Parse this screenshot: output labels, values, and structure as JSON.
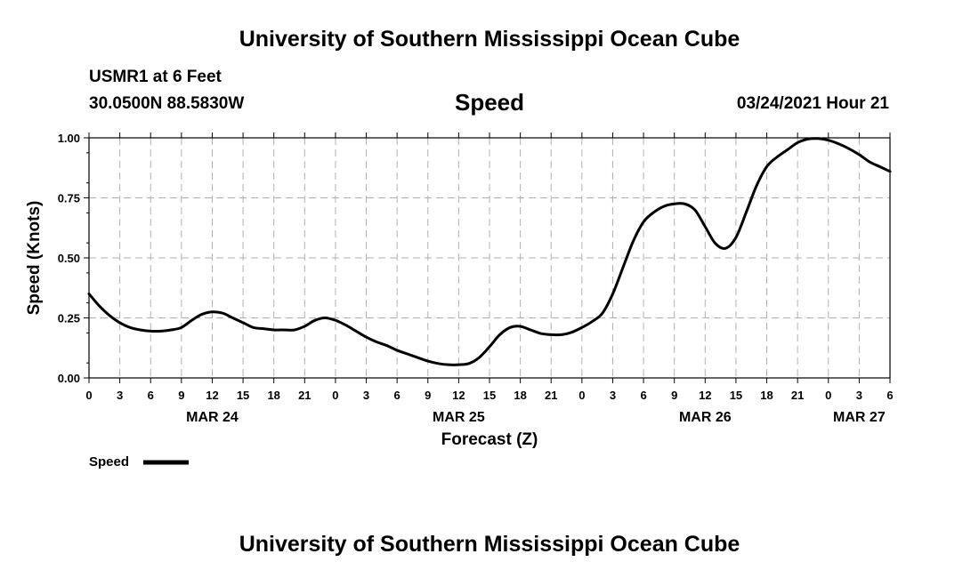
{
  "header": {
    "title": "University of Southern Mississippi Ocean Cube",
    "station": "USMR1 at 6 Feet",
    "coords": "30.0500N 88.5830W",
    "variable": "Speed",
    "datetime": "03/24/2021 Hour 21"
  },
  "footer": {
    "title": "University of Southern Mississippi Ocean Cube"
  },
  "chart_data": {
    "type": "line",
    "title": "Speed",
    "xlabel": "Forecast (Z)",
    "ylabel": "Speed (Knots)",
    "ylim": [
      0,
      1.0
    ],
    "xlim_hours": [
      0,
      78
    ],
    "grid": true,
    "y_ticks": [
      "0.00",
      "0.25",
      "0.50",
      "0.75",
      "1.00"
    ],
    "x_ticks": [
      "0",
      "3",
      "6",
      "9",
      "12",
      "15",
      "18",
      "21",
      "0",
      "3",
      "6",
      "9",
      "12",
      "15",
      "18",
      "21",
      "0",
      "3",
      "6",
      "9",
      "12",
      "15",
      "18",
      "21",
      "0",
      "3",
      "6"
    ],
    "date_labels": [
      {
        "label": "MAR 24",
        "hour": 12
      },
      {
        "label": "MAR 25",
        "hour": 36
      },
      {
        "label": "MAR 26",
        "hour": 60
      },
      {
        "label": "MAR 27",
        "hour": 75
      }
    ],
    "legend": {
      "label": "Speed",
      "color": "#000000"
    },
    "series": [
      {
        "name": "Speed",
        "color": "#000000",
        "x": [
          0,
          1,
          2,
          3,
          4,
          5,
          6,
          7,
          8,
          9,
          10,
          11,
          12,
          13,
          14,
          15,
          16,
          17,
          18,
          19,
          20,
          21,
          22,
          23,
          24,
          25,
          26,
          27,
          28,
          29,
          30,
          31,
          32,
          33,
          34,
          35,
          36,
          37,
          38,
          39,
          40,
          41,
          42,
          43,
          44,
          45,
          46,
          47,
          48,
          49,
          50,
          51,
          52,
          53,
          54,
          55,
          56,
          57,
          58,
          59,
          60,
          61,
          62,
          63,
          64,
          65,
          66,
          67,
          68,
          69,
          70,
          71,
          72,
          73,
          74,
          75,
          76,
          77,
          78
        ],
        "values": [
          0.35,
          0.3,
          0.26,
          0.23,
          0.21,
          0.2,
          0.195,
          0.195,
          0.2,
          0.21,
          0.24,
          0.265,
          0.275,
          0.27,
          0.25,
          0.23,
          0.21,
          0.205,
          0.2,
          0.2,
          0.2,
          0.215,
          0.24,
          0.25,
          0.24,
          0.22,
          0.195,
          0.17,
          0.15,
          0.135,
          0.115,
          0.1,
          0.085,
          0.07,
          0.06,
          0.055,
          0.055,
          0.06,
          0.085,
          0.13,
          0.18,
          0.21,
          0.215,
          0.2,
          0.185,
          0.18,
          0.18,
          0.19,
          0.21,
          0.235,
          0.27,
          0.35,
          0.46,
          0.57,
          0.65,
          0.69,
          0.715,
          0.725,
          0.725,
          0.7,
          0.63,
          0.56,
          0.54,
          0.585,
          0.69,
          0.8,
          0.88,
          0.92,
          0.95,
          0.98,
          0.995,
          0.997,
          0.99,
          0.975,
          0.955,
          0.93,
          0.9,
          0.88,
          0.86
        ]
      }
    ]
  }
}
